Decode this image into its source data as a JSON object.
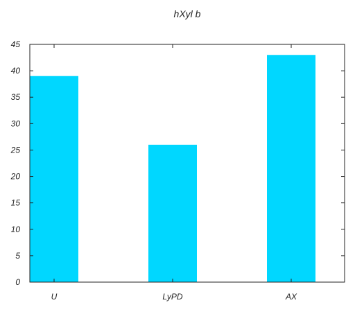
{
  "chart_data": {
    "type": "bar",
    "title": "hXyl b",
    "xlabel": "",
    "ylabel": "",
    "categories": [
      "U",
      "LyPD",
      "AX"
    ],
    "values": [
      39,
      26,
      43
    ],
    "ylim": [
      0,
      45
    ],
    "yticks": [
      0,
      5,
      10,
      15,
      20,
      25,
      30,
      35,
      40,
      45
    ],
    "grid": false,
    "legend": "none",
    "bar_color": "#00d7ff",
    "axis_color": "#222222"
  }
}
